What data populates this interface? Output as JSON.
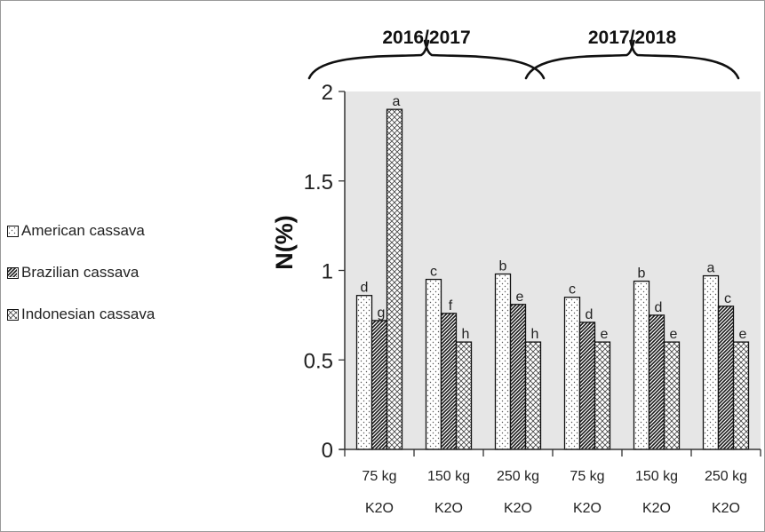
{
  "chart_data": {
    "type": "bar",
    "ylabel": "N(%)",
    "ylim": [
      0,
      2
    ],
    "yticks": [
      "0",
      "0.5",
      "1",
      "1.5",
      "2"
    ],
    "categories": [
      {
        "line1": "75 kg",
        "line2": "K2O"
      },
      {
        "line1": "150 kg",
        "line2": "K2O"
      },
      {
        "line1": "250 kg",
        "line2": "K2O"
      },
      {
        "line1": "75 kg",
        "line2": "K2O"
      },
      {
        "line1": "150 kg",
        "line2": "K2O"
      },
      {
        "line1": "250 kg",
        "line2": "K2O"
      }
    ],
    "groups": [
      {
        "label": "2016/2017",
        "categories": [
          0,
          1,
          2
        ]
      },
      {
        "label": "2017/2018",
        "categories": [
          3,
          4,
          5
        ]
      }
    ],
    "series": [
      {
        "name": "American cassava",
        "pattern": "dots",
        "values": [
          0.86,
          0.95,
          0.98,
          0.85,
          0.94,
          0.97
        ],
        "letters": [
          "d",
          "c",
          "b",
          "c",
          "b",
          "a"
        ]
      },
      {
        "name": "Brazilian cassava",
        "pattern": "diagonal",
        "values": [
          0.72,
          0.76,
          0.81,
          0.71,
          0.75,
          0.8
        ],
        "letters": [
          "g",
          "f",
          "e",
          "d",
          "d",
          "c"
        ]
      },
      {
        "name": "Indonesian cassava",
        "pattern": "crosshatch",
        "values": [
          1.9,
          0.6,
          0.6,
          0.6,
          0.6,
          0.6
        ],
        "letters": [
          "a",
          "h",
          "h",
          "e",
          "e",
          "e"
        ]
      }
    ],
    "plot_background": "#e6e6e6",
    "grid": false,
    "legend_position": "left"
  }
}
